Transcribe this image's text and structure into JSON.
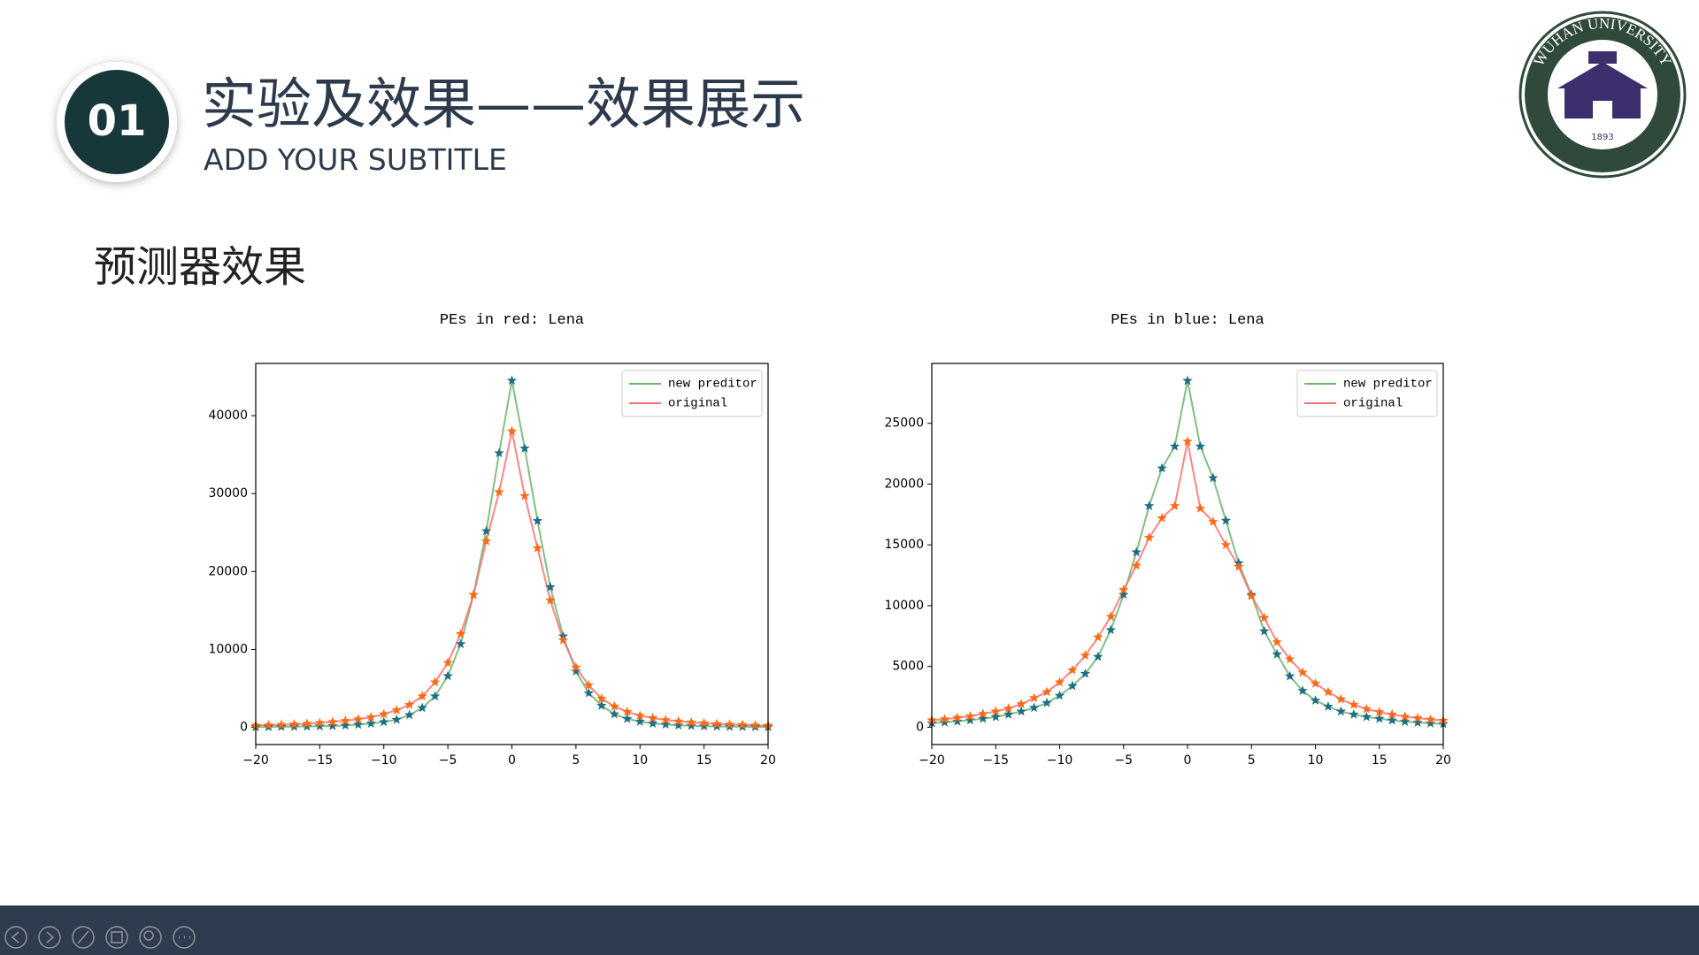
{
  "slide": {
    "number": "01",
    "title": "实验及效果——效果展示",
    "subtitle": "ADD YOUR SUBTITLE",
    "section": "预测器效果",
    "logo_text": "WUHAN UNIVERSITY",
    "logo_year": "1893"
  },
  "chart_data": [
    {
      "type": "line",
      "title": "PEs in red: Lena",
      "x": [
        -20,
        -19,
        -18,
        -17,
        -16,
        -15,
        -14,
        -13,
        -12,
        -11,
        -10,
        -9,
        -8,
        -7,
        -6,
        -5,
        -4,
        -3,
        -2,
        -1,
        0,
        1,
        2,
        3,
        4,
        5,
        6,
        7,
        8,
        9,
        10,
        11,
        12,
        13,
        14,
        15,
        16,
        17,
        18,
        19,
        20
      ],
      "series": [
        {
          "name": "new preditor",
          "color": "#6ab56a",
          "marker_color": "#1f6e86",
          "values": [
            50,
            60,
            80,
            100,
            120,
            150,
            200,
            250,
            350,
            500,
            700,
            1000,
            1600,
            2500,
            4000,
            6600,
            10700,
            17000,
            25200,
            35200,
            44500,
            35800,
            26500,
            18000,
            11700,
            7200,
            4400,
            2800,
            1700,
            1100,
            750,
            500,
            380,
            270,
            210,
            160,
            130,
            100,
            80,
            60,
            50
          ]
        },
        {
          "name": "original",
          "color": "#ff7070",
          "marker_color": "#ff6a13",
          "values": [
            250,
            290,
            340,
            400,
            480,
            580,
            700,
            850,
            1050,
            1300,
            1700,
            2200,
            2900,
            4000,
            5800,
            8300,
            12000,
            17000,
            23900,
            30200,
            38000,
            29700,
            23000,
            16300,
            11200,
            7700,
            5400,
            3700,
            2700,
            2000,
            1500,
            1200,
            950,
            780,
            650,
            540,
            450,
            380,
            320,
            270,
            230
          ]
        }
      ],
      "xlim": [
        -20,
        20
      ],
      "ylim": [
        -2200,
        46700
      ],
      "xticks": [
        {
          "value": -20,
          "label": "−20"
        },
        {
          "value": -15,
          "label": "−15"
        },
        {
          "value": -10,
          "label": "−10"
        },
        {
          "value": -5,
          "label": "−5"
        },
        0,
        5,
        10,
        15,
        20
      ],
      "yticks": [
        0,
        10000,
        20000,
        30000,
        40000
      ],
      "legend": "upper right",
      "grid": false
    },
    {
      "type": "line",
      "title": "PEs in blue: Lena",
      "x": [
        -20,
        -19,
        -18,
        -17,
        -16,
        -15,
        -14,
        -13,
        -12,
        -11,
        -10,
        -9,
        -8,
        -7,
        -6,
        -5,
        -4,
        -3,
        -2,
        -1,
        0,
        1,
        2,
        3,
        4,
        5,
        6,
        7,
        8,
        9,
        10,
        11,
        12,
        13,
        14,
        15,
        16,
        17,
        18,
        19,
        20
      ],
      "series": [
        {
          "name": "new preditor",
          "color": "#6ab56a",
          "marker_color": "#1f6e86",
          "values": [
            340,
            400,
            480,
            580,
            700,
            850,
            1050,
            1300,
            1600,
            2000,
            2600,
            3400,
            4400,
            5800,
            8000,
            10900,
            14400,
            18200,
            21300,
            23100,
            28500,
            23100,
            20500,
            17000,
            13500,
            10900,
            7900,
            6000,
            4200,
            3000,
            2200,
            1700,
            1300,
            1050,
            850,
            700,
            560,
            460,
            380,
            320,
            270
          ]
        },
        {
          "name": "original",
          "color": "#ff7070",
          "marker_color": "#ff6a13",
          "values": [
            580,
            660,
            780,
            900,
            1100,
            1300,
            1550,
            1900,
            2400,
            2900,
            3700,
            4700,
            5900,
            7400,
            9100,
            11300,
            13300,
            15600,
            17200,
            18200,
            23500,
            18000,
            16900,
            15000,
            13200,
            10800,
            9000,
            7000,
            5600,
            4500,
            3600,
            2900,
            2300,
            1850,
            1500,
            1250,
            1050,
            880,
            750,
            640,
            550
          ]
        }
      ],
      "xlim": [
        -20,
        20
      ],
      "ylim": [
        -1425,
        29925
      ],
      "xticks": [
        {
          "value": -20,
          "label": "−20"
        },
        {
          "value": -15,
          "label": "−15"
        },
        {
          "value": -10,
          "label": "−10"
        },
        {
          "value": -5,
          "label": "−5"
        },
        0,
        5,
        10,
        15,
        20
      ],
      "yticks": [
        0,
        5000,
        10000,
        15000,
        20000,
        25000
      ],
      "legend": "upper right",
      "grid": false
    }
  ]
}
